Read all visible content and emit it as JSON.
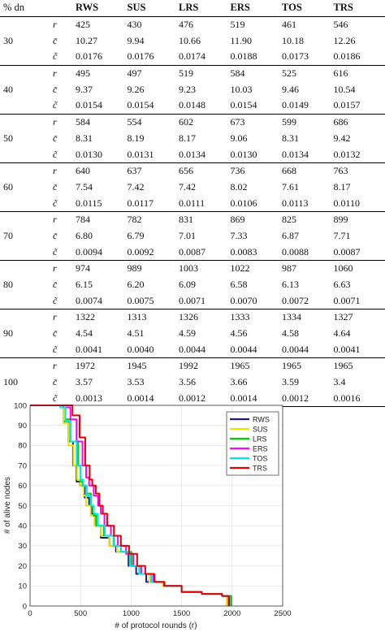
{
  "table": {
    "headers": [
      "% dn",
      "",
      "RWS",
      "SUS",
      "LRS",
      "ERS",
      "TOS",
      "TRS"
    ],
    "row_symbols": [
      "r",
      "c̄",
      "c̃"
    ],
    "groups": [
      {
        "dn": "30",
        "rows": [
          [
            "425",
            "430",
            "476",
            "519",
            "461",
            "546"
          ],
          [
            "10.27",
            "9.94",
            "10.66",
            "11.90",
            "10.18",
            "12.26"
          ],
          [
            "0.0176",
            "0.0176",
            "0.0174",
            "0.0188",
            "0.0173",
            "0.0186"
          ]
        ]
      },
      {
        "dn": "40",
        "rows": [
          [
            "495",
            "497",
            "519",
            "584",
            "525",
            "616"
          ],
          [
            "9.37",
            "9.26",
            "9.23",
            "10.03",
            "9.46",
            "10.54"
          ],
          [
            "0.0154",
            "0.0154",
            "0.0148",
            "0.0154",
            "0.0149",
            "0.0157"
          ]
        ]
      },
      {
        "dn": "50",
        "rows": [
          [
            "584",
            "554",
            "602",
            "673",
            "599",
            "686"
          ],
          [
            "8.31",
            "8.19",
            "8.17",
            "9.06",
            "8.31",
            "9.42"
          ],
          [
            "0.0130",
            "0.0131",
            "0.0134",
            "0.0130",
            "0.0134",
            "0.0132"
          ]
        ]
      },
      {
        "dn": "60",
        "rows": [
          [
            "640",
            "637",
            "656",
            "736",
            "668",
            "763"
          ],
          [
            "7.54",
            "7.42",
            "7.42",
            "8.02",
            "7.61",
            "8.17"
          ],
          [
            "0.0115",
            "0.0117",
            "0.0111",
            "0.0106",
            "0.0113",
            "0.0110"
          ]
        ]
      },
      {
        "dn": "70",
        "rows": [
          [
            "784",
            "782",
            "831",
            "869",
            "825",
            "899"
          ],
          [
            "6.80",
            "6.79",
            "7.01",
            "7.33",
            "6.87",
            "7.71"
          ],
          [
            "0.0094",
            "0.0092",
            "0.0087",
            "0.0083",
            "0.0088",
            "0.0087"
          ]
        ]
      },
      {
        "dn": "80",
        "rows": [
          [
            "974",
            "989",
            "1003",
            "1022",
            "987",
            "1060"
          ],
          [
            "6.15",
            "6.20",
            "6.09",
            "6.58",
            "6.13",
            "6.63"
          ],
          [
            "0.0074",
            "0.0075",
            "0.0071",
            "0.0070",
            "0.0072",
            "0.0071"
          ]
        ]
      },
      {
        "dn": "90",
        "rows": [
          [
            "1322",
            "1313",
            "1326",
            "1333",
            "1334",
            "1327"
          ],
          [
            "4.54",
            "4.51",
            "4.59",
            "4.56",
            "4.58",
            "4.64"
          ],
          [
            "0.0041",
            "0.0040",
            "0.0044",
            "0.0044",
            "0.0044",
            "0.0041"
          ]
        ]
      },
      {
        "dn": "100",
        "rows": [
          [
            "1972",
            "1945",
            "1992",
            "1965",
            "1965",
            "1965"
          ],
          [
            "3.57",
            "3.53",
            "3.56",
            "3.66",
            "3.59",
            "3.4"
          ],
          [
            "0.0013",
            "0.0014",
            "0.0012",
            "0.0014",
            "0.0012",
            "0.0016"
          ]
        ]
      }
    ]
  },
  "chart_data": {
    "type": "line",
    "title": "",
    "xlabel": "# of protocol rounds (r)",
    "ylabel": "# of alive nodes",
    "xlim": [
      0,
      2500
    ],
    "ylim": [
      0,
      100
    ],
    "xticks": [
      0,
      500,
      1000,
      1500,
      2000,
      2500
    ],
    "yticks": [
      0,
      10,
      20,
      30,
      40,
      50,
      60,
      70,
      80,
      90,
      100
    ],
    "grid": true,
    "legend_position": "top-right",
    "series": [
      {
        "name": "RWS",
        "color": "#1a1a8c",
        "points": [
          [
            0,
            100
          ],
          [
            230,
            100
          ],
          [
            280,
            100
          ],
          [
            330,
            92
          ],
          [
            380,
            82
          ],
          [
            425,
            70
          ],
          [
            460,
            62
          ],
          [
            495,
            60
          ],
          [
            540,
            54
          ],
          [
            584,
            50
          ],
          [
            610,
            46
          ],
          [
            640,
            40
          ],
          [
            700,
            34
          ],
          [
            784,
            30
          ],
          [
            850,
            27
          ],
          [
            974,
            20
          ],
          [
            1050,
            16
          ],
          [
            1150,
            12
          ],
          [
            1322,
            10
          ],
          [
            1500,
            7
          ],
          [
            1700,
            6
          ],
          [
            1900,
            5
          ],
          [
            1972,
            0
          ]
        ]
      },
      {
        "name": "SUS",
        "color": "#e6e600",
        "points": [
          [
            0,
            100
          ],
          [
            230,
            100
          ],
          [
            285,
            100
          ],
          [
            330,
            91
          ],
          [
            380,
            80
          ],
          [
            430,
            70
          ],
          [
            465,
            63
          ],
          [
            497,
            60
          ],
          [
            530,
            55
          ],
          [
            554,
            50
          ],
          [
            600,
            45
          ],
          [
            637,
            40
          ],
          [
            700,
            35
          ],
          [
            782,
            30
          ],
          [
            860,
            27
          ],
          [
            989,
            20
          ],
          [
            1080,
            16
          ],
          [
            1180,
            12
          ],
          [
            1313,
            10
          ],
          [
            1500,
            7
          ],
          [
            1700,
            6
          ],
          [
            1900,
            5
          ],
          [
            1945,
            0
          ]
        ]
      },
      {
        "name": "LRS",
        "color": "#00cc00",
        "points": [
          [
            0,
            100
          ],
          [
            240,
            100
          ],
          [
            300,
            99
          ],
          [
            350,
            93
          ],
          [
            400,
            82
          ],
          [
            476,
            70
          ],
          [
            500,
            62
          ],
          [
            519,
            60
          ],
          [
            560,
            56
          ],
          [
            602,
            50
          ],
          [
            630,
            45
          ],
          [
            656,
            40
          ],
          [
            730,
            35
          ],
          [
            831,
            30
          ],
          [
            900,
            27
          ],
          [
            1003,
            20
          ],
          [
            1100,
            16
          ],
          [
            1200,
            12
          ],
          [
            1326,
            10
          ],
          [
            1500,
            7
          ],
          [
            1700,
            6
          ],
          [
            1900,
            5
          ],
          [
            1992,
            0
          ]
        ]
      },
      {
        "name": "ERS",
        "color": "#ff00ff",
        "points": [
          [
            0,
            100
          ],
          [
            250,
            100
          ],
          [
            330,
            99
          ],
          [
            400,
            93
          ],
          [
            460,
            82
          ],
          [
            519,
            70
          ],
          [
            555,
            64
          ],
          [
            584,
            60
          ],
          [
            630,
            55
          ],
          [
            673,
            50
          ],
          [
            700,
            46
          ],
          [
            736,
            40
          ],
          [
            800,
            35
          ],
          [
            869,
            30
          ],
          [
            950,
            26
          ],
          [
            1022,
            20
          ],
          [
            1100,
            16
          ],
          [
            1220,
            12
          ],
          [
            1333,
            10
          ],
          [
            1500,
            7
          ],
          [
            1700,
            6
          ],
          [
            1900,
            5
          ],
          [
            1965,
            0
          ]
        ]
      },
      {
        "name": "TOS",
        "color": "#00e5e5",
        "points": [
          [
            0,
            100
          ],
          [
            240,
            100
          ],
          [
            300,
            99
          ],
          [
            350,
            92
          ],
          [
            400,
            82
          ],
          [
            461,
            70
          ],
          [
            500,
            63
          ],
          [
            525,
            60
          ],
          [
            560,
            55
          ],
          [
            599,
            50
          ],
          [
            630,
            46
          ],
          [
            668,
            40
          ],
          [
            740,
            35
          ],
          [
            825,
            30
          ],
          [
            900,
            27
          ],
          [
            987,
            20
          ],
          [
            1080,
            16
          ],
          [
            1200,
            12
          ],
          [
            1334,
            10
          ],
          [
            1500,
            7
          ],
          [
            1700,
            6
          ],
          [
            1900,
            5
          ],
          [
            1965,
            0
          ]
        ]
      },
      {
        "name": "TRS",
        "color": "#e60000",
        "points": [
          [
            0,
            100
          ],
          [
            260,
            100
          ],
          [
            340,
            100
          ],
          [
            420,
            95
          ],
          [
            490,
            84
          ],
          [
            546,
            70
          ],
          [
            590,
            63
          ],
          [
            616,
            60
          ],
          [
            650,
            56
          ],
          [
            686,
            50
          ],
          [
            720,
            46
          ],
          [
            763,
            40
          ],
          [
            830,
            35
          ],
          [
            899,
            30
          ],
          [
            980,
            26
          ],
          [
            1060,
            20
          ],
          [
            1140,
            16
          ],
          [
            1230,
            12
          ],
          [
            1327,
            10
          ],
          [
            1500,
            7
          ],
          [
            1700,
            6
          ],
          [
            1900,
            5
          ],
          [
            1965,
            0
          ]
        ]
      }
    ]
  }
}
